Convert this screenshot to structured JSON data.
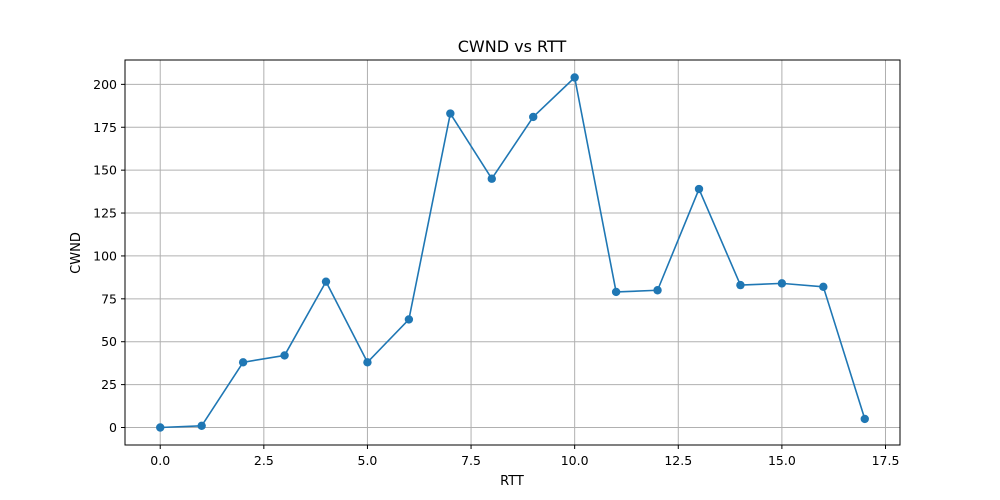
{
  "chart_data": {
    "type": "line",
    "title": "CWND vs RTT",
    "xlabel": "RTT",
    "ylabel": "CWND",
    "xlim": [
      -0.85,
      17.85
    ],
    "ylim": [
      -10.2,
      214.2
    ],
    "xticks": [
      0.0,
      2.5,
      5.0,
      7.5,
      10.0,
      12.5,
      15.0,
      17.5
    ],
    "xtick_labels": [
      "0.0",
      "2.5",
      "5.0",
      "7.5",
      "10.0",
      "12.5",
      "15.0",
      "17.5"
    ],
    "yticks": [
      0,
      25,
      50,
      75,
      100,
      125,
      150,
      175,
      200
    ],
    "ytick_labels": [
      "0",
      "25",
      "50",
      "75",
      "100",
      "125",
      "150",
      "175",
      "200"
    ],
    "grid": true,
    "markers": "circle",
    "series": [
      {
        "color": "#1f77b4",
        "x": [
          0,
          1,
          2,
          3,
          4,
          5,
          6,
          7,
          8,
          9,
          10,
          11,
          12,
          13,
          14,
          15,
          16,
          17
        ],
        "y": [
          0,
          1,
          38,
          42,
          85,
          38,
          63,
          183,
          145,
          181,
          204,
          79,
          80,
          139,
          83,
          84,
          82,
          5
        ]
      }
    ]
  }
}
